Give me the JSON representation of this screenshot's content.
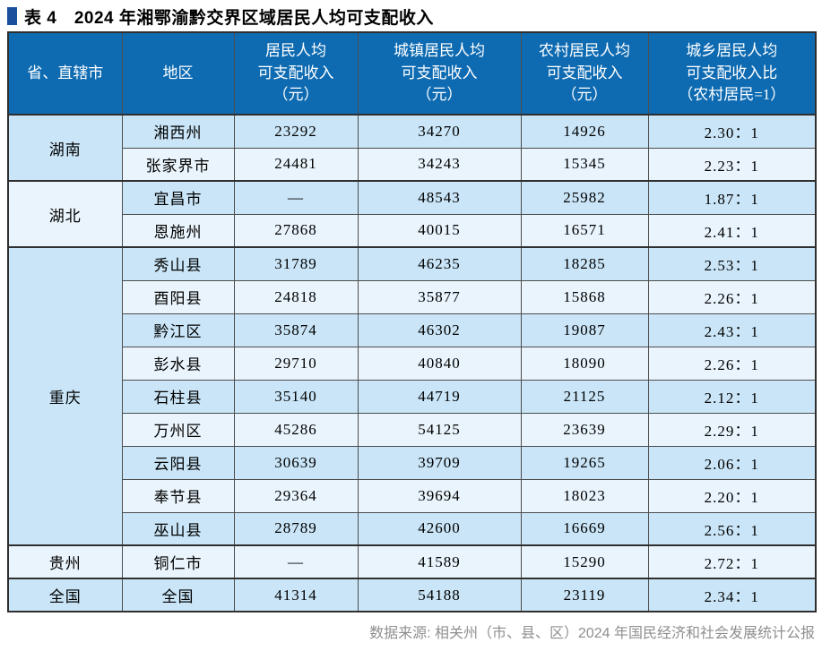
{
  "title": {
    "text": "表 4　2024 年湘鄂渝黔交界区域居民人均可支配收入"
  },
  "colors": {
    "header_bg": "#0e6bb2",
    "row_dark": "#c9e5f7",
    "row_light": "#e9f4fc",
    "title_marker": "#1a4f9e",
    "footer_text": "#8f8f8f"
  },
  "table": {
    "headers": [
      "省、直辖市",
      "地区",
      "居民人均\n可支配收入\n（元）",
      "城镇居民人均\n可支配收入\n（元）",
      "农村居民人均\n可支配收入\n（元）",
      "城乡居民人均\n可支配收入比\n（农村居民=1）"
    ],
    "groups": [
      {
        "province": "湖南",
        "rows": [
          {
            "region": "湘西州",
            "values": [
              "23292",
              "34270",
              "14926",
              "2.30：1"
            ]
          },
          {
            "region": "张家界市",
            "values": [
              "24481",
              "34243",
              "15345",
              "2.23：1"
            ]
          }
        ]
      },
      {
        "province": "湖北",
        "rows": [
          {
            "region": "宜昌市",
            "values": [
              "—",
              "48543",
              "25982",
              "1.87：1"
            ]
          },
          {
            "region": "恩施州",
            "values": [
              "27868",
              "40015",
              "16571",
              "2.41：1"
            ]
          }
        ]
      },
      {
        "province": "重庆",
        "rows": [
          {
            "region": "秀山县",
            "values": [
              "31789",
              "46235",
              "18285",
              "2.53：1"
            ]
          },
          {
            "region": "酉阳县",
            "values": [
              "24818",
              "35877",
              "15868",
              "2.26：1"
            ]
          },
          {
            "region": "黔江区",
            "values": [
              "35874",
              "46302",
              "19087",
              "2.43：1"
            ]
          },
          {
            "region": "彭水县",
            "values": [
              "29710",
              "40840",
              "18090",
              "2.26：1"
            ]
          },
          {
            "region": "石柱县",
            "values": [
              "35140",
              "44719",
              "21125",
              "2.12：1"
            ]
          },
          {
            "region": "万州区",
            "values": [
              "45286",
              "54125",
              "23639",
              "2.29：1"
            ]
          },
          {
            "region": "云阳县",
            "values": [
              "30639",
              "39709",
              "19265",
              "2.06：1"
            ]
          },
          {
            "region": "奉节县",
            "values": [
              "29364",
              "39694",
              "18023",
              "2.20：1"
            ]
          },
          {
            "region": "巫山县",
            "values": [
              "28789",
              "42600",
              "16669",
              "2.56：1"
            ]
          }
        ]
      },
      {
        "province": "贵州",
        "rows": [
          {
            "region": "铜仁市",
            "values": [
              "—",
              "41589",
              "15290",
              "2.72：1"
            ]
          }
        ]
      },
      {
        "province": "全国",
        "rows": [
          {
            "region": "全国",
            "values": [
              "41314",
              "54188",
              "23119",
              "2.34：1"
            ]
          }
        ]
      }
    ],
    "source_note": "数据来源: 相关州（市、县、区）2024 年国民经济和社会发展统计公报"
  }
}
